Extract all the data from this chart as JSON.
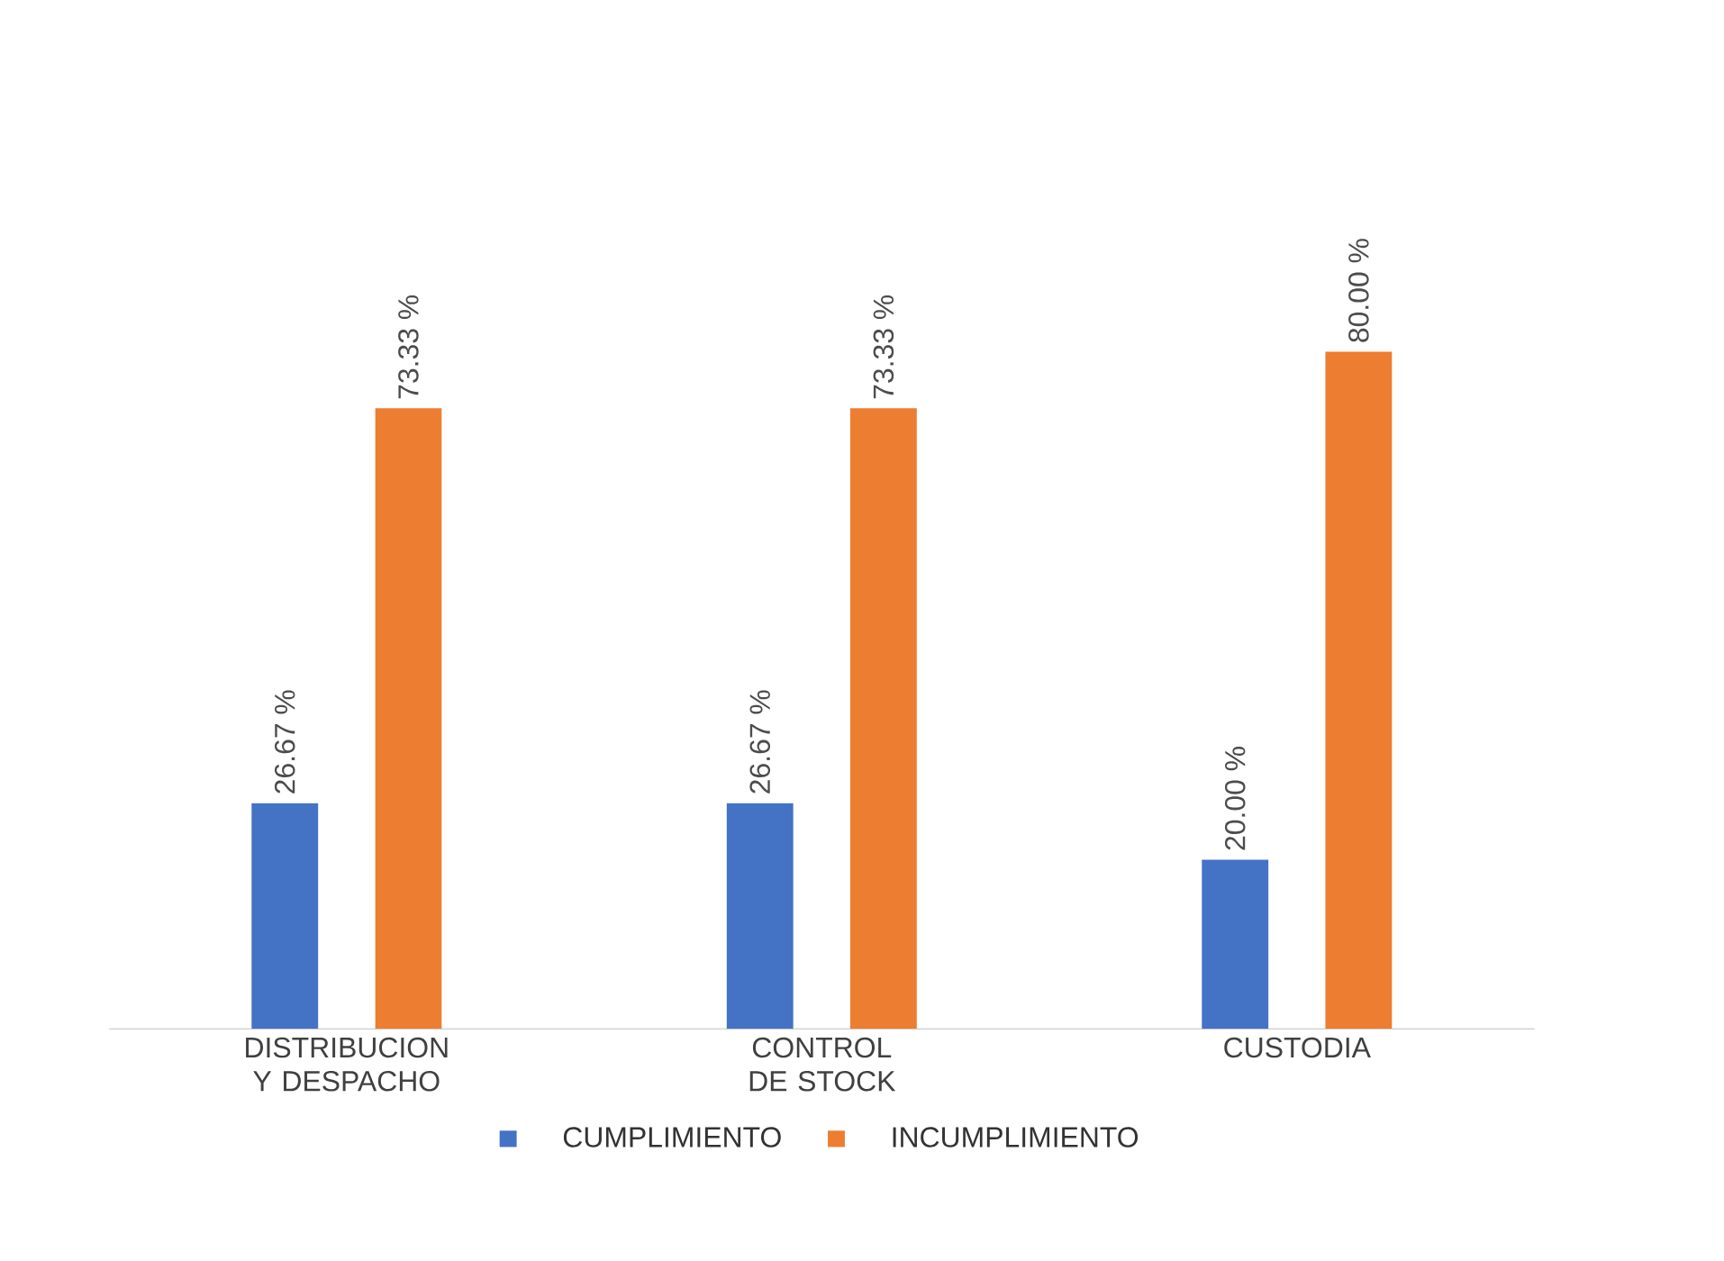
{
  "chart_data": {
    "type": "bar",
    "categories": [
      "DISTRIBUCION Y DESPACHO",
      "CONTROL DE STOCK",
      "CUSTODIA"
    ],
    "series": [
      {
        "name": "CUMPLIMIENTO",
        "color": "#4472c4",
        "values": [
          26.67,
          26.67,
          20.0
        ],
        "value_labels": [
          "26.67 %",
          "26.67 %",
          "20.00 %"
        ]
      },
      {
        "name": "INCUMPLIMIENTO",
        "color": "#ed7d31",
        "values": [
          73.33,
          73.33,
          80.0
        ],
        "value_labels": [
          "73.33 %",
          "73.33 %",
          "80.00 %"
        ]
      }
    ],
    "legend": "bottom"
  }
}
